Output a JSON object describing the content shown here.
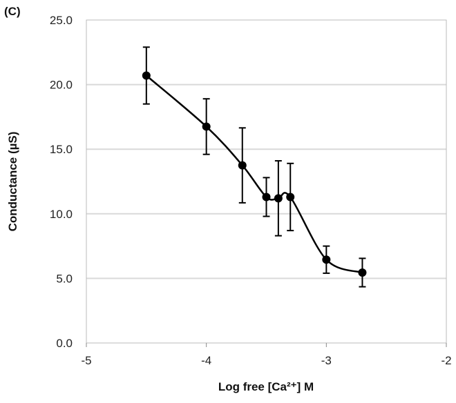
{
  "chart_data": {
    "type": "line",
    "panel_label": "(C)",
    "xlabel": "Log free [Ca²⁺] M",
    "ylabel": "Conductance (µS)",
    "xlim": [
      -5,
      -2
    ],
    "ylim": [
      0,
      25
    ],
    "x_ticks": [
      "-5",
      "-4",
      "-3",
      "-2"
    ],
    "y_ticks": [
      "0.0",
      "5.0",
      "10.0",
      "15.0",
      "20.0",
      "25.0"
    ],
    "grid": "horizontal",
    "smooth": true,
    "color": "#000000",
    "points": [
      {
        "x": -4.5,
        "y": 20.7,
        "err": 2.2
      },
      {
        "x": -4.0,
        "y": 16.75,
        "err": 2.15
      },
      {
        "x": -3.7,
        "y": 13.75,
        "err": 2.9
      },
      {
        "x": -3.5,
        "y": 11.3,
        "err": 1.5
      },
      {
        "x": -3.4,
        "y": 11.2,
        "err": 2.9
      },
      {
        "x": -3.3,
        "y": 11.3,
        "err": 2.6
      },
      {
        "x": -3.0,
        "y": 6.45,
        "err": 1.05
      },
      {
        "x": -2.7,
        "y": 5.45,
        "err": 1.1
      }
    ]
  }
}
